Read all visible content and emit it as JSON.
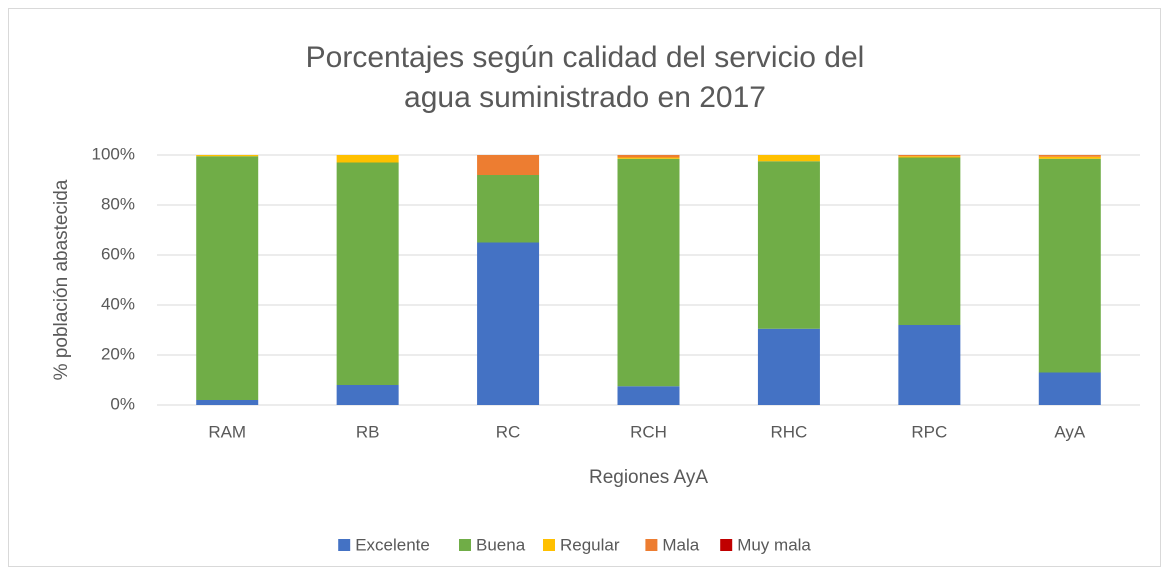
{
  "chart_data": {
    "type": "stacked_bar",
    "title": "Porcentajes según calidad del servicio del agua suministrado en 2017",
    "x_label": "Regiones AyA",
    "y_label": "% población abastecida",
    "categories": [
      "RAM",
      "RB",
      "RC",
      "RCH",
      "RHC",
      "RPC",
      "AyA"
    ],
    "series": [
      {
        "name": "Excelente",
        "color": "#4472c4",
        "values": [
          2,
          8,
          65,
          7.5,
          30.5,
          32,
          13
        ]
      },
      {
        "name": "Buena",
        "color": "#70ad47",
        "values": [
          97.5,
          89,
          27,
          91,
          67,
          67,
          85.5
        ]
      },
      {
        "name": "Regular",
        "color": "#ffc000",
        "values": [
          0.5,
          3,
          0,
          0.5,
          2.5,
          0.5,
          0.8
        ]
      },
      {
        "name": "Mala",
        "color": "#ed7d31",
        "values": [
          0,
          0,
          8,
          1,
          0,
          0.5,
          0.7
        ]
      },
      {
        "name": "Muy mala",
        "color": "#c00000",
        "values": [
          0,
          0,
          0,
          0,
          0,
          0,
          0
        ]
      }
    ],
    "ylim": [
      0,
      100
    ],
    "yticks": [
      {
        "value": 0,
        "label": "0%"
      },
      {
        "value": 20,
        "label": "20%"
      },
      {
        "value": 40,
        "label": "40%"
      },
      {
        "value": 60,
        "label": "60%"
      },
      {
        "value": 80,
        "label": "80%"
      },
      {
        "value": 100,
        "label": "100%"
      }
    ],
    "grid": true,
    "legend": "bottom"
  }
}
